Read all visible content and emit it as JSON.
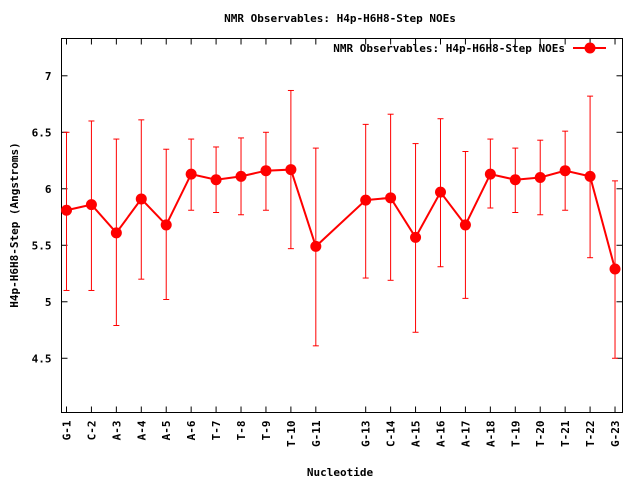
{
  "chart_data": {
    "type": "line",
    "title": "NMR Observables: H4p-H6H8-Step NOEs",
    "xlabel": "Nucleotide",
    "ylabel": "H4p-H6H8-Step (Angstroms)",
    "ylim": [
      4.02,
      7.33
    ],
    "xlim": [
      0.8,
      23.3
    ],
    "yticks": [
      "4.5",
      "5",
      "5.5",
      "6",
      "6.5",
      "7"
    ],
    "ytick_values": [
      4.5,
      5,
      5.5,
      6,
      6.5,
      7
    ],
    "legend": {
      "label": "NMR Observables: H4p-H6H8-Step NOEs",
      "placement": "top-right"
    },
    "series_color": "#ff0000",
    "points": [
      {
        "x": 1,
        "label": "G-1",
        "y": 5.81,
        "ymin": 5.1,
        "ymax": 6.5
      },
      {
        "x": 2,
        "label": "C-2",
        "y": 5.86,
        "ymin": 5.1,
        "ymax": 6.6
      },
      {
        "x": 3,
        "label": "A-3",
        "y": 5.61,
        "ymin": 4.79,
        "ymax": 6.44
      },
      {
        "x": 4,
        "label": "A-4",
        "y": 5.91,
        "ymin": 5.2,
        "ymax": 6.61
      },
      {
        "x": 5,
        "label": "A-5",
        "y": 5.68,
        "ymin": 5.02,
        "ymax": 6.35
      },
      {
        "x": 6,
        "label": "A-6",
        "y": 6.13,
        "ymin": 5.81,
        "ymax": 6.44
      },
      {
        "x": 7,
        "label": "T-7",
        "y": 6.08,
        "ymin": 5.79,
        "ymax": 6.37
      },
      {
        "x": 8,
        "label": "T-8",
        "y": 6.11,
        "ymin": 5.77,
        "ymax": 6.45
      },
      {
        "x": 9,
        "label": "T-9",
        "y": 6.16,
        "ymin": 5.81,
        "ymax": 6.5
      },
      {
        "x": 10,
        "label": "T-10",
        "y": 6.17,
        "ymin": 5.47,
        "ymax": 6.87
      },
      {
        "x": 11,
        "label": "G-11",
        "y": 5.49,
        "ymin": 4.61,
        "ymax": 6.36
      },
      {
        "x": 13,
        "label": "G-13",
        "y": 5.9,
        "ymin": 5.21,
        "ymax": 6.57
      },
      {
        "x": 14,
        "label": "C-14",
        "y": 5.92,
        "ymin": 5.19,
        "ymax": 6.66
      },
      {
        "x": 15,
        "label": "A-15",
        "y": 5.57,
        "ymin": 4.73,
        "ymax": 6.4
      },
      {
        "x": 16,
        "label": "A-16",
        "y": 5.97,
        "ymin": 5.31,
        "ymax": 6.62
      },
      {
        "x": 17,
        "label": "A-17",
        "y": 5.68,
        "ymin": 5.03,
        "ymax": 6.33
      },
      {
        "x": 18,
        "label": "A-18",
        "y": 6.13,
        "ymin": 5.83,
        "ymax": 6.44
      },
      {
        "x": 19,
        "label": "T-19",
        "y": 6.08,
        "ymin": 5.79,
        "ymax": 6.36
      },
      {
        "x": 20,
        "label": "T-20",
        "y": 6.1,
        "ymin": 5.77,
        "ymax": 6.43
      },
      {
        "x": 21,
        "label": "T-21",
        "y": 6.16,
        "ymin": 5.81,
        "ymax": 6.51
      },
      {
        "x": 22,
        "label": "T-22",
        "y": 6.11,
        "ymin": 5.39,
        "ymax": 6.82
      },
      {
        "x": 23,
        "label": "G-23",
        "y": 5.29,
        "ymin": 4.5,
        "ymax": 6.07
      }
    ]
  }
}
